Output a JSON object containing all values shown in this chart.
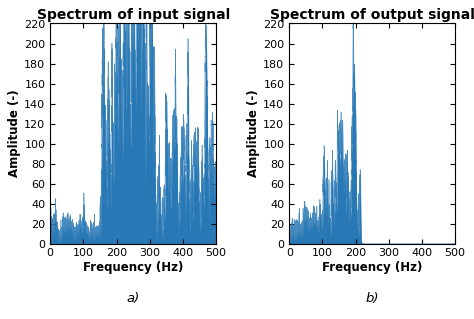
{
  "title_left": "Spectrum of input signal",
  "title_right": "Spectrum of output signal",
  "xlabel": "Frequency (Hz)",
  "ylabel": "Amplitude (-)",
  "label_a": "a)",
  "label_b": "b)",
  "xlim": [
    0,
    500
  ],
  "ylim": [
    0,
    220
  ],
  "yticks": [
    0,
    20,
    40,
    60,
    80,
    100,
    120,
    140,
    160,
    180,
    200,
    220
  ],
  "xticks": [
    0,
    100,
    200,
    300,
    400,
    500
  ],
  "line_color": "#2878b5",
  "bg_color": "#ffffff",
  "title_fontsize": 10,
  "label_fontsize": 8.5,
  "tick_fontsize": 8
}
